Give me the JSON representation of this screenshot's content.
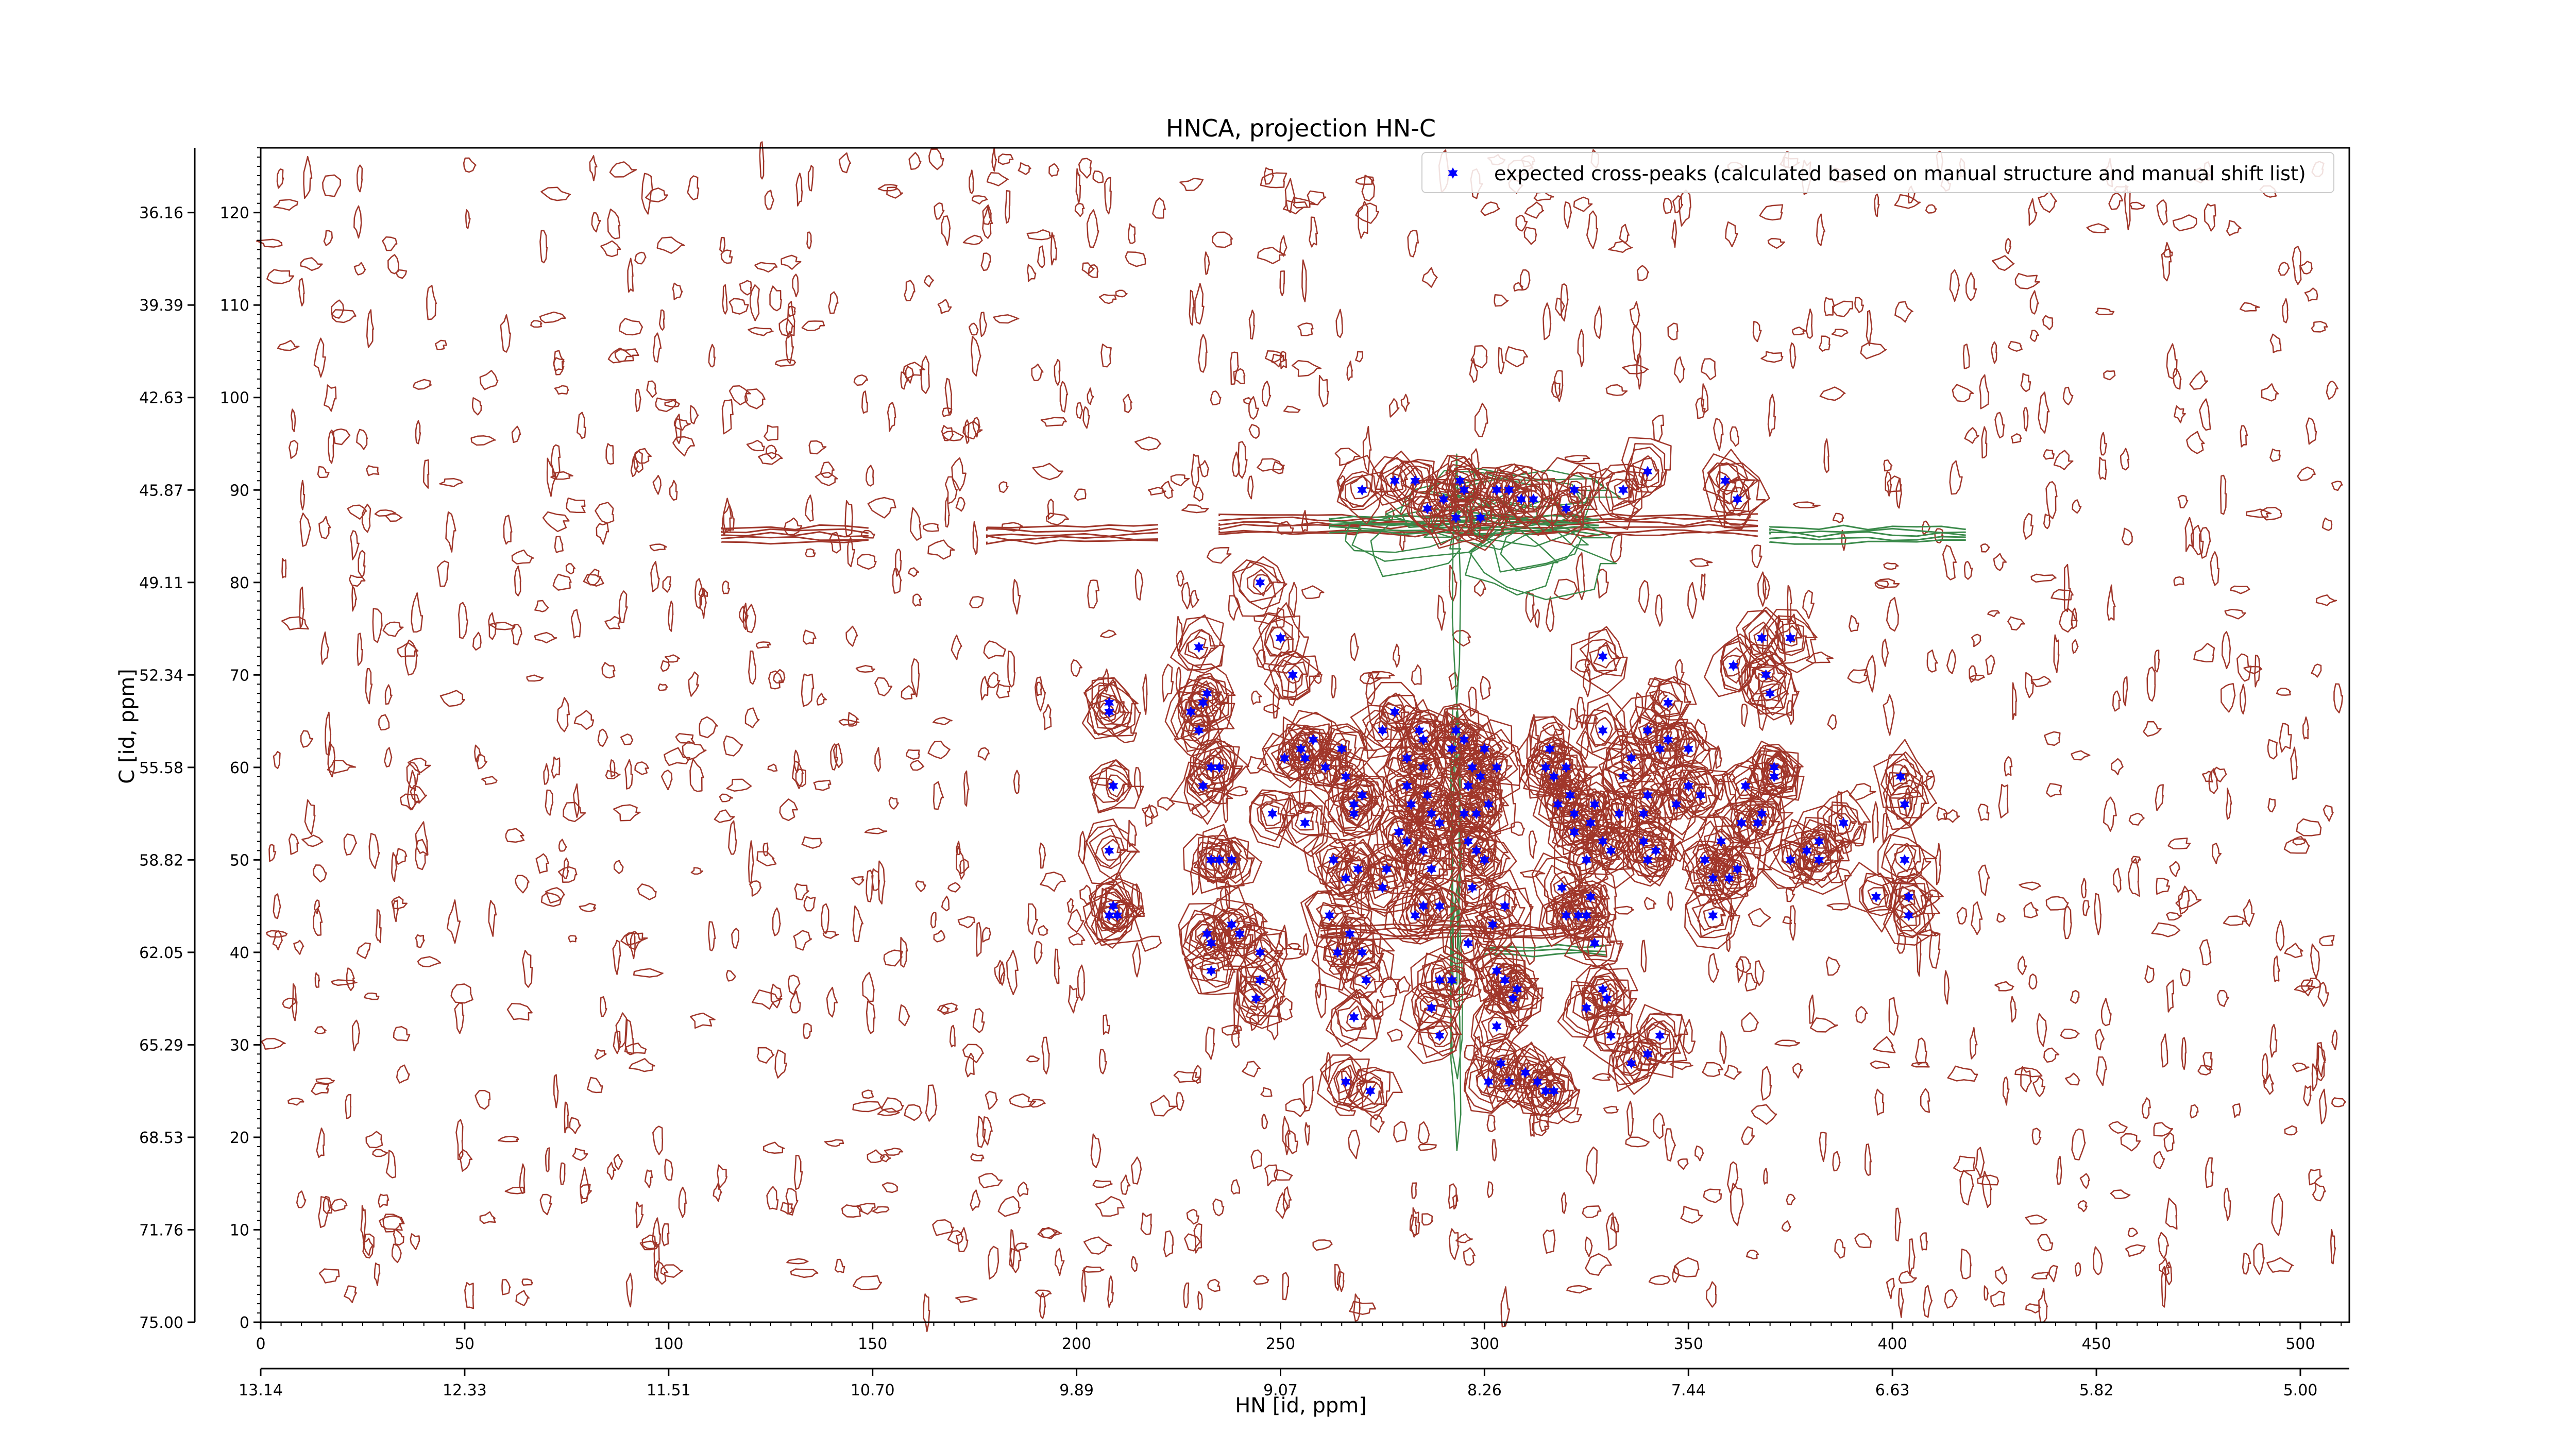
{
  "colors": {
    "background": "#ffffff",
    "contour_positive": "#a0362a",
    "contour_negative": "#3a8a4a",
    "peak_marker": "#0000ff",
    "axis": "#000000"
  },
  "chart_data": {
    "type": "scatter",
    "title": "HNCA, projection HN-C",
    "xlabel": "HN [id, ppm]",
    "ylabel": "C [id, ppm]",
    "xlim": [
      0,
      512
    ],
    "ylim": [
      0,
      127
    ],
    "x_ticks": [
      0,
      50,
      100,
      150,
      200,
      250,
      300,
      350,
      400,
      450,
      500
    ],
    "x_ppm_ticks": [
      "13.14",
      "12.33",
      "11.51",
      "10.70",
      "9.89",
      "9.07",
      "8.26",
      "7.44",
      "6.63",
      "5.82",
      "5.00"
    ],
    "y_ticks": [
      0,
      10,
      20,
      30,
      40,
      50,
      60,
      70,
      80,
      90,
      100,
      110,
      120
    ],
    "y_ppm_ticks": [
      "75.00",
      "71.76",
      "68.53",
      "65.29",
      "62.05",
      "58.82",
      "55.58",
      "52.34",
      "49.11",
      "45.87",
      "42.63",
      "39.39",
      "36.16"
    ],
    "grid": false,
    "legend": {
      "position": "top-right",
      "entries": [
        "expected cross-peaks (calculated based on manual structure and manual shift list)"
      ]
    },
    "series": [
      {
        "name": "expected cross-peaks (calculated based on manual structure and manual shift list)",
        "marker": "star",
        "points": [
          [
            208,
            66
          ],
          [
            208,
            67
          ],
          [
            209,
            58
          ],
          [
            208,
            51
          ],
          [
            208,
            44
          ],
          [
            210,
            44
          ],
          [
            209,
            45
          ],
          [
            228,
            66
          ],
          [
            230,
            73
          ],
          [
            231,
            67
          ],
          [
            232,
            68
          ],
          [
            230,
            64
          ],
          [
            231,
            58
          ],
          [
            233,
            60
          ],
          [
            235,
            60
          ],
          [
            233,
            50
          ],
          [
            235,
            50
          ],
          [
            238,
            50
          ],
          [
            232,
            42
          ],
          [
            233,
            41
          ],
          [
            233,
            38
          ],
          [
            238,
            43
          ],
          [
            240,
            42
          ],
          [
            245,
            40
          ],
          [
            245,
            37
          ],
          [
            244,
            35
          ],
          [
            248,
            55
          ],
          [
            251,
            61
          ],
          [
            256,
            54
          ],
          [
            256,
            61
          ],
          [
            255,
            62
          ],
          [
            258,
            63
          ],
          [
            261,
            60
          ],
          [
            265,
            62
          ],
          [
            266,
            59
          ],
          [
            268,
            56
          ],
          [
            268,
            55
          ],
          [
            270,
            57
          ],
          [
            263,
            50
          ],
          [
            266,
            48
          ],
          [
            269,
            49
          ],
          [
            262,
            44
          ],
          [
            264,
            40
          ],
          [
            267,
            42
          ],
          [
            270,
            40
          ],
          [
            271,
            37
          ],
          [
            268,
            33
          ],
          [
            266,
            26
          ],
          [
            272,
            25
          ],
          [
            275,
            64
          ],
          [
            278,
            66
          ],
          [
            281,
            61
          ],
          [
            281,
            58
          ],
          [
            284,
            64
          ],
          [
            285,
            63
          ],
          [
            285,
            60
          ],
          [
            286,
            57
          ],
          [
            282,
            56
          ],
          [
            279,
            53
          ],
          [
            287,
            55
          ],
          [
            289,
            54
          ],
          [
            285,
            51
          ],
          [
            281,
            52
          ],
          [
            287,
            49
          ],
          [
            289,
            45
          ],
          [
            285,
            45
          ],
          [
            289,
            37
          ],
          [
            292,
            37
          ],
          [
            287,
            34
          ],
          [
            289,
            31
          ],
          [
            283,
            44
          ],
          [
            275,
            47
          ],
          [
            276,
            49
          ],
          [
            292,
            62
          ],
          [
            293,
            64
          ],
          [
            295,
            63
          ],
          [
            297,
            60
          ],
          [
            296,
            58
          ],
          [
            299,
            59
          ],
          [
            300,
            62
          ],
          [
            303,
            60
          ],
          [
            295,
            55
          ],
          [
            298,
            55
          ],
          [
            301,
            56
          ],
          [
            296,
            52
          ],
          [
            298,
            51
          ],
          [
            300,
            50
          ],
          [
            297,
            47
          ],
          [
            296,
            41
          ],
          [
            302,
            43
          ],
          [
            305,
            45
          ],
          [
            303,
            38
          ],
          [
            305,
            37
          ],
          [
            307,
            35
          ],
          [
            308,
            36
          ],
          [
            303,
            32
          ],
          [
            304,
            28
          ],
          [
            306,
            26
          ],
          [
            301,
            26
          ],
          [
            310,
            27
          ],
          [
            313,
            26
          ],
          [
            315,
            25
          ],
          [
            317,
            25
          ],
          [
            315,
            60
          ],
          [
            316,
            62
          ],
          [
            317,
            59
          ],
          [
            318,
            56
          ],
          [
            320,
            60
          ],
          [
            321,
            57
          ],
          [
            322,
            55
          ],
          [
            322,
            53
          ],
          [
            325,
            50
          ],
          [
            319,
            47
          ],
          [
            320,
            44
          ],
          [
            323,
            44
          ],
          [
            325,
            44
          ],
          [
            326,
            54
          ],
          [
            327,
            56
          ],
          [
            329,
            52
          ],
          [
            331,
            51
          ],
          [
            326,
            46
          ],
          [
            333,
            55
          ],
          [
            334,
            59
          ],
          [
            336,
            61
          ],
          [
            339,
            55
          ],
          [
            339,
            52
          ],
          [
            340,
            50
          ],
          [
            342,
            51
          ],
          [
            340,
            57
          ],
          [
            343,
            62
          ],
          [
            340,
            64
          ],
          [
            345,
            63
          ],
          [
            345,
            67
          ],
          [
            329,
            64
          ],
          [
            329,
            72
          ],
          [
            327,
            41
          ],
          [
            329,
            36
          ],
          [
            330,
            35
          ],
          [
            325,
            34
          ],
          [
            331,
            31
          ],
          [
            336,
            28
          ],
          [
            340,
            29
          ],
          [
            343,
            31
          ],
          [
            347,
            56
          ],
          [
            350,
            62
          ],
          [
            350,
            58
          ],
          [
            353,
            57
          ],
          [
            354,
            50
          ],
          [
            356,
            48
          ],
          [
            356,
            44
          ],
          [
            360,
            48
          ],
          [
            362,
            49
          ],
          [
            363,
            54
          ],
          [
            364,
            58
          ],
          [
            367,
            54
          ],
          [
            368,
            55
          ],
          [
            371,
            60
          ],
          [
            371,
            59
          ],
          [
            375,
            74
          ],
          [
            361,
            71
          ],
          [
            370,
            68
          ],
          [
            371,
            59
          ],
          [
            382,
            52
          ],
          [
            382,
            50
          ],
          [
            388,
            54
          ],
          [
            396,
            46
          ],
          [
            402,
            59
          ],
          [
            403,
            56
          ],
          [
            403,
            50
          ],
          [
            404,
            46
          ],
          [
            404,
            44
          ],
          [
            379,
            51
          ],
          [
            375,
            50
          ],
          [
            245,
            80
          ],
          [
            250,
            74
          ],
          [
            253,
            70
          ],
          [
            270,
            90
          ],
          [
            278,
            91
          ],
          [
            283,
            91
          ],
          [
            286,
            88
          ],
          [
            290,
            89
          ],
          [
            293,
            87
          ],
          [
            294,
            91
          ],
          [
            295,
            90
          ],
          [
            299,
            87
          ],
          [
            303,
            90
          ],
          [
            306,
            90
          ],
          [
            309,
            89
          ],
          [
            312,
            89
          ],
          [
            320,
            88
          ],
          [
            322,
            90
          ],
          [
            334,
            90
          ],
          [
            340,
            92
          ],
          [
            359,
            91
          ],
          [
            362,
            89
          ],
          [
            368,
            74
          ],
          [
            369,
            70
          ],
          [
            358,
            52
          ]
        ]
      }
    ]
  }
}
